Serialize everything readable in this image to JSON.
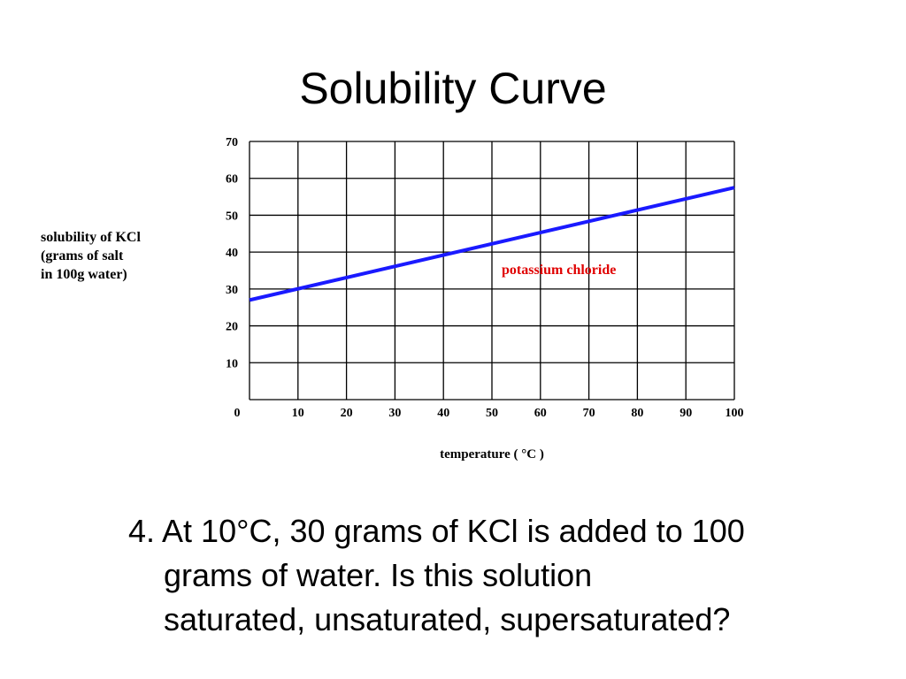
{
  "slide": {
    "title": "Solubility Curve",
    "question_lines": [
      "4.  At 10°C, 30 grams of KCl is added to 100",
      "grams of water.  Is this solution",
      "saturated, unsaturated, supersaturated?"
    ]
  },
  "chart_data": {
    "type": "line",
    "ylabel_lines": [
      "solubility of KCl",
      "(grams of salt",
      "in 100g water)"
    ],
    "xlabel": "temperature ( °C )",
    "x_ticks": [
      "0",
      "10",
      "20",
      "30",
      "40",
      "50",
      "60",
      "70",
      "80",
      "90",
      "100"
    ],
    "y_ticks": [
      "10",
      "20",
      "30",
      "40",
      "50",
      "60",
      "70"
    ],
    "xlim": [
      0,
      100
    ],
    "ylim": [
      0,
      70
    ],
    "grid": true,
    "series": [
      {
        "name": "potassium chloride",
        "x": [
          0,
          100
        ],
        "y": [
          27,
          57.5
        ]
      }
    ],
    "colors": {
      "line": "#1a1aff",
      "label": "#e00000",
      "grid": "#000000"
    }
  }
}
